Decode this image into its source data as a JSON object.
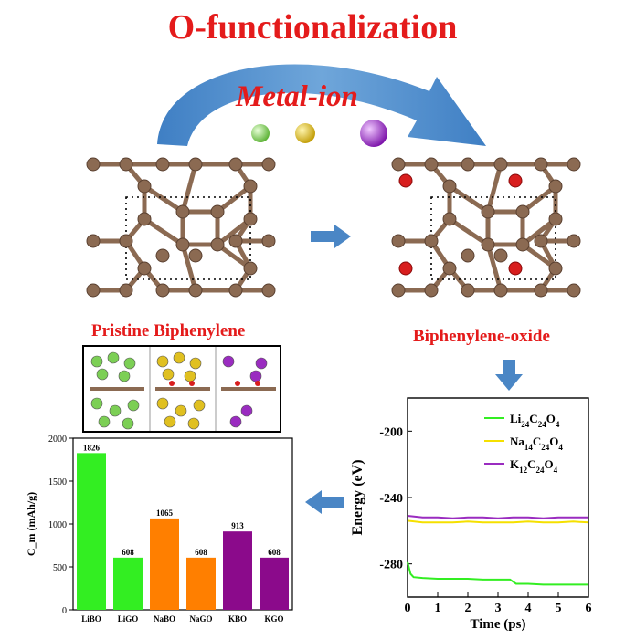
{
  "title": "O-functionalization",
  "metal_ion_label": "Metal-ion",
  "ions": [
    {
      "name": "Li",
      "color": "#7ccf55"
    },
    {
      "name": "Na",
      "color": "#e0c020"
    },
    {
      "name": "K",
      "color": "#9a2cc0"
    }
  ],
  "captions": {
    "pristine": "Pristine Biphenylene",
    "oxide": "Biphenylene-oxide"
  },
  "colors": {
    "title": "#e41b1b",
    "carbon": "#8b6a52",
    "oxygen": "#d81e1e",
    "arrow_blue": "#4a86c5"
  },
  "chart_data": [
    {
      "type": "bar",
      "categories": [
        "LiBO",
        "LiGO",
        "NaBO",
        "NaGO",
        "KBO",
        "KGO"
      ],
      "values": [
        1826,
        608,
        1065,
        608,
        913,
        608
      ],
      "value_labels": [
        "1826",
        "608",
        "1065",
        "608",
        "913",
        "608"
      ],
      "colors": [
        "#33ee22",
        "#33ee22",
        "#ff7f00",
        "#ff7f00",
        "#8b0a8b",
        "#8b0a8b"
      ],
      "ylabel": "C_m (mAh/g)",
      "ylim": [
        0,
        2000
      ],
      "yticks": [
        0,
        500,
        1000,
        1500,
        2000
      ],
      "ytick_labels": [
        "0",
        "500",
        "1000",
        "1500",
        "2000"
      ]
    },
    {
      "type": "line",
      "xlabel": "Time (ps)",
      "ylabel": "Energy (eV)",
      "xlim": [
        0,
        6
      ],
      "ylim": [
        -300,
        -180
      ],
      "xticks": [
        0,
        1,
        2,
        3,
        4,
        5,
        6
      ],
      "yticks": [
        -280,
        -240,
        -200
      ],
      "xtick_labels": [
        "0",
        "1",
        "2",
        "3",
        "4",
        "5",
        "6"
      ],
      "ytick_labels": [
        "-280",
        "-240",
        "-200"
      ],
      "legend_position": "top-right",
      "series": [
        {
          "name": "Li24C24O4",
          "color": "#33ee22",
          "x": [
            0,
            0.1,
            0.2,
            0.5,
            1.0,
            1.5,
            2.0,
            2.5,
            3.0,
            3.4,
            3.6,
            4.0,
            4.5,
            5.0,
            5.5,
            6.0
          ],
          "y": [
            -279,
            -286,
            -288,
            -288.5,
            -289,
            -289,
            -289,
            -289.5,
            -289.5,
            -289.5,
            -292,
            -292,
            -292.5,
            -292.5,
            -292.5,
            -292.5
          ]
        },
        {
          "name": "Na14C24O4",
          "color": "#f5e000",
          "x": [
            0,
            0.5,
            1.0,
            1.5,
            2.0,
            2.5,
            3.0,
            3.5,
            4.0,
            4.5,
            5.0,
            5.5,
            6.0
          ],
          "y": [
            -254,
            -255,
            -255,
            -255,
            -254.5,
            -255,
            -255,
            -255,
            -254.5,
            -255,
            -255,
            -254.5,
            -255
          ]
        },
        {
          "name": "K12C24O4",
          "color": "#9a2cc0",
          "x": [
            0,
            0.5,
            1.0,
            1.5,
            2.0,
            2.5,
            3.0,
            3.5,
            4.0,
            4.5,
            5.0,
            5.5,
            6.0
          ],
          "y": [
            -251,
            -252,
            -252,
            -252.5,
            -252,
            -252,
            -252.5,
            -252,
            -252,
            -252.5,
            -252,
            -252,
            -252
          ]
        }
      ]
    }
  ]
}
